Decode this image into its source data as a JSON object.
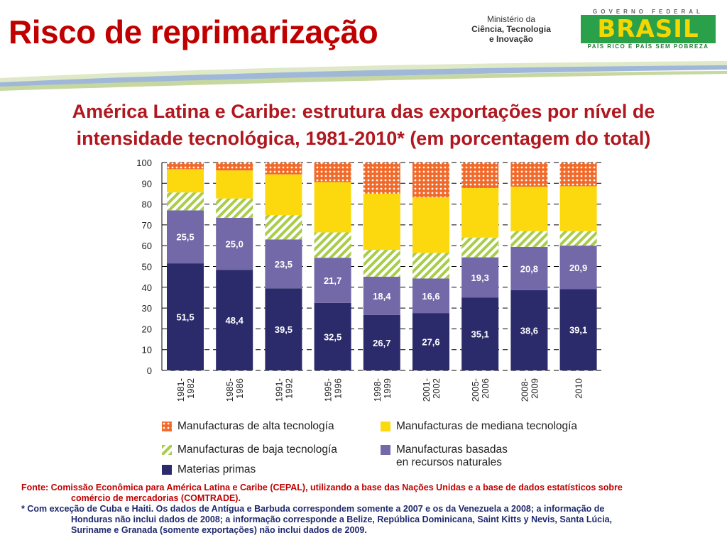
{
  "header": {
    "title": "Risco de reprimarização",
    "ministry": [
      "Ministério da",
      "Ciência, Tecnologia",
      "e Inovação"
    ],
    "brasil": {
      "top": "GOVERNO FEDERAL",
      "logo": "BRASIL",
      "bottom": "PAÍS RICO É PAÍS SEM POBREZA"
    }
  },
  "subtitle": "América Latina e Caribe: estrutura das exportações por nível de intensidade tecnológica, 1981-2010* (em porcentagem do total)",
  "chart_data": {
    "type": "bar",
    "stacked": true,
    "title": "América Latina e Caribe: estrutura das exportações por nível de intensidade tecnológica, 1981-2010* (em porcentagem do total)",
    "categories": [
      "1981-1982",
      "1985-1986",
      "1991-1992",
      "1995-1996",
      "1998-1999",
      "2001-2002",
      "2005-2006",
      "2008-2009",
      "2010"
    ],
    "ylim": [
      0,
      100
    ],
    "yticks": [
      0,
      10,
      20,
      30,
      40,
      50,
      60,
      70,
      80,
      90,
      100
    ],
    "grid": true,
    "legend": "bottom",
    "series": [
      {
        "name": "Materias primas",
        "color": "#2b2a6b",
        "labeled": true,
        "values": [
          51.5,
          48.4,
          39.5,
          32.5,
          26.7,
          27.6,
          35.1,
          38.6,
          39.1
        ]
      },
      {
        "name": "Manufacturas basadas en recursos naturales",
        "color": "#7368a8",
        "labeled": true,
        "values": [
          25.5,
          25.0,
          23.5,
          21.7,
          18.4,
          16.6,
          19.3,
          20.8,
          20.9
        ]
      },
      {
        "name": "Manufacturas de baja tecnología",
        "color": "#a9cc4a",
        "pattern": "stripes",
        "values": [
          8.6,
          9.3,
          11.7,
          12.2,
          12.9,
          12.3,
          9.5,
          7.6,
          7.0
        ]
      },
      {
        "name": "Manufacturas de mediana tecnología",
        "color": "#fcd90f",
        "values": [
          11.2,
          13.5,
          19.6,
          24.2,
          27.0,
          26.8,
          23.8,
          21.4,
          21.6
        ]
      },
      {
        "name": "Manufacturas de alta tecnología",
        "color": "#f26a2a",
        "pattern": "dots",
        "values": [
          3.2,
          3.8,
          5.7,
          9.4,
          15.0,
          16.7,
          12.3,
          11.6,
          11.4
        ]
      }
    ],
    "value_labels": [
      [
        "51,5",
        "48,4",
        "39,5",
        "32,5",
        "26,7",
        "27,6",
        "35,1",
        "38,6",
        "39,1"
      ],
      [
        "25,5",
        "25,0",
        "23,5",
        "21,7",
        "18,4",
        "16,6",
        "19,3",
        "20,8",
        "20,9"
      ]
    ]
  },
  "legend": {
    "alta": "Manufacturas de alta tecnología",
    "mediana": "Manufacturas de mediana tecnología",
    "baja": "Manufacturas de baja tecnología",
    "basadas1": "Manufacturas basadas",
    "basadas2": "en recursos naturales",
    "primas": "Materias primas"
  },
  "footnotes": {
    "source": "Fonte: Comissão Econômica para América Latina e Caribe (CEPAL), utilizando a base das Nações Unidas e a base de dados estatísticos sobre",
    "source2": "comércio de mercadorias (COMTRADE).",
    "note": "* Com exceção de Cuba e Haiti. Os dados de Antígua e Barbuda correspondem somente a 2007 e os da Venezuela a 2008; a informação de",
    "note2": "Honduras não inclui dados de 2008; a informação corresponde a Belize, República Dominicana, Saint Kitts y Nevis, Santa Lúcia,",
    "note3": "Suriname e Granada (somente exportações) não inclui dados de 2009."
  }
}
